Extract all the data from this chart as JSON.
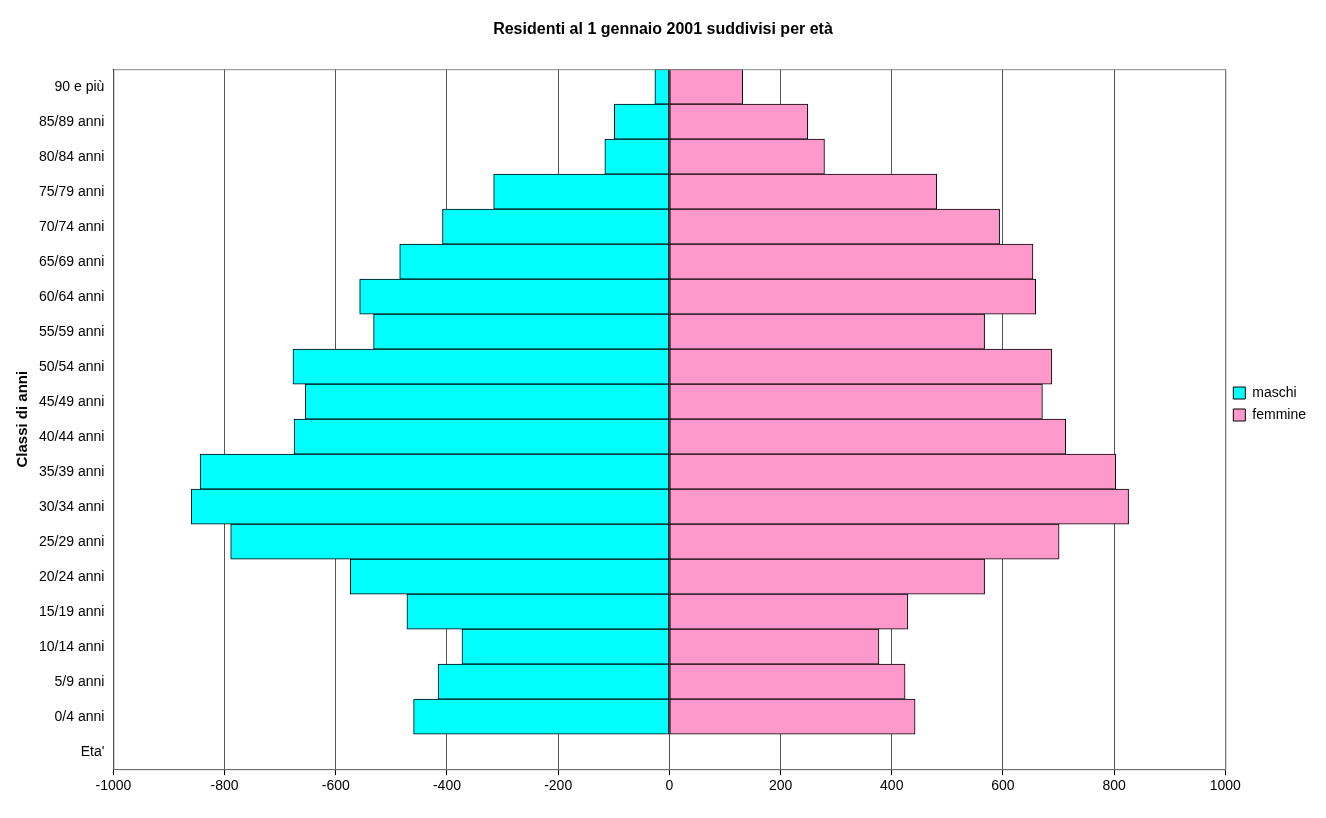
{
  "chart_data": {
    "type": "bar",
    "orientation": "horizontal",
    "stacked": true,
    "title": "Residenti al 1 gennaio 2001 suddivisi per età",
    "ylabel": "Classi di anni",
    "categories": [
      "90 e più",
      "85/89 anni",
      "80/84 anni",
      "75/79 anni",
      "70/74 anni",
      "65/69 anni",
      "60/64 anni",
      "55/59 anni",
      "50/54 anni",
      "45/49 anni",
      "40/44 anni",
      "35/39 anni",
      "30/34 anni",
      "25/29 anni",
      "20/24 anni",
      "15/19 anni",
      "10/14 anni",
      "5/9 anni",
      "0/4 anni",
      "Eta'"
    ],
    "series": [
      {
        "name": "maschi",
        "color": "#00ffff",
        "values": [
          -26,
          -99,
          -116,
          -316,
          -408,
          -485,
          -557,
          -532,
          -677,
          -655,
          -675,
          -844,
          -860,
          -789,
          -574,
          -472,
          -373,
          -416,
          -460,
          null
        ]
      },
      {
        "name": "femmine",
        "color": "#ff99cc",
        "values": [
          132,
          249,
          279,
          481,
          594,
          654,
          659,
          567,
          688,
          671,
          713,
          803,
          826,
          701,
          567,
          429,
          377,
          424,
          442,
          null
        ]
      }
    ],
    "xlim": [
      -1000,
      1000
    ],
    "xticks": [
      -1000,
      -800,
      -600,
      -400,
      -200,
      0,
      200,
      400,
      600,
      800,
      1000
    ],
    "grid": "x",
    "legend": "right"
  }
}
